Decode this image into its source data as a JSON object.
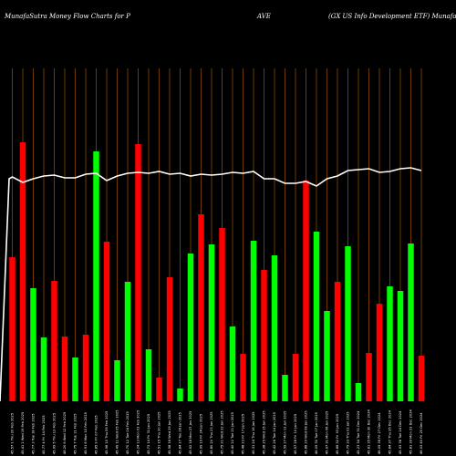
{
  "header": {
    "left": "MunafaSutra  Money Flow  Charts for P",
    "middle": "AVE",
    "right": "(GX   US Info Development ETF) MunafaSutra.com"
  },
  "colors": {
    "background": "#000000",
    "up": "#00ff00",
    "down": "#ff0000",
    "grid": "#8a4a00",
    "line": "#ffffff"
  },
  "chart_data": {
    "type": "bar",
    "title": "MunafaSutra  Money Flow  Charts for PAVE (GX US Info Development ETF) MunafaSutra.com",
    "categories": [
      "45.57 1 Thu 20 Feb 2025",
      "45.41 2 Wed 19 Feb 2025",
      "45.77 3 Tue 18 Feb 2025",
      "45.77 4 Fri 14 Feb 2025",
      "45.99 5 Thu 13 Feb 2025",
      "46.20 6 Wed 12 Feb 2025",
      "45.75 7 Tue 11 Feb 2025",
      "45.91 8 Mon 10 Feb 2025",
      "45.85 9 Fri 07 Feb 2025",
      "45.96 10 Thu 06 Feb 2025",
      "45.49 11 Wed 05 Feb 2025",
      "45.70 12 Tue 04 Feb 2025",
      "45.24 13 Mon 03 Feb 2025",
      "45.73 14 Fri 31 Jan 2025",
      "45.51 15 Thu 30 Jan 2025",
      "45.58 16 Wed 29 Jan 2025",
      "45.84 17 Tue 28 Jan 2025",
      "45.92 18 Mon 27 Jan 2025",
      "45.99 19 Fri 24 Jan 2025",
      "45.80 20 Thu 23 Jan 2025",
      "45.75 21 Wed 22 Jan 2025",
      "45.40 22 Tue 21 Jan 2025",
      "45.48 23 Fri 17 Jan 2025",
      "45.31 24 Thu 16 Jan 2025",
      "45.38 25 Wed 15 Jan 2025",
      "45.42 26 Tue 14 Jan 2025",
      "45.59 27 Mon 13 Jan 2025",
      "45.57 28 Fri 10 Jan 2025",
      "45.88 29 Wed 08 Jan 2025",
      "46.09 30 Tue 07 Jan 2025",
      "45.97 31 Mon 06 Jan 2025",
      "45.66 32 Fri 03 Jan 2025",
      "45.79 33 Thu 02 Jan 2025",
      "45.23 34 Tue 31 Dec 2024",
      "45.81 35 Mon 30 Dec 2024",
      "46.05 36 Fri 27 Dec 2024",
      "45.84 37 Thu 26 Dec 2024",
      "45.93 38 Tue 24 Dec 2024",
      "45.81 39 Mon 23 Dec 2024",
      "46.03 40 Fri 20 Dec 2024"
    ],
    "values": [
      158,
      284,
      124,
      70,
      132,
      71,
      48,
      73,
      274,
      175,
      45,
      131,
      282,
      57,
      26,
      136,
      14,
      162,
      205,
      172,
      190,
      82,
      52,
      176,
      144,
      160,
      29,
      52,
      242,
      186,
      99,
      131,
      170,
      20,
      53,
      107,
      126,
      121,
      173,
      50
    ],
    "direction": [
      "down",
      "down",
      "up",
      "up",
      "down",
      "down",
      "up",
      "down",
      "up",
      "down",
      "up",
      "up",
      "down",
      "up",
      "down",
      "down",
      "up",
      "up",
      "down",
      "up",
      "down",
      "up",
      "down",
      "up",
      "down",
      "up",
      "up",
      "down",
      "down",
      "up",
      "up",
      "down",
      "up",
      "up",
      "down",
      "down",
      "up",
      "up",
      "up",
      "down"
    ],
    "line_values": [
      246,
      240,
      244,
      247,
      248,
      245,
      245,
      249,
      250,
      242,
      247,
      250,
      251,
      250,
      252,
      249,
      250,
      247,
      249,
      248,
      249,
      251,
      250,
      252,
      244,
      244,
      239,
      239,
      241,
      236,
      244,
      247,
      253,
      254,
      255,
      251,
      252,
      255,
      256,
      253
    ],
    "ylim": [
      0,
      440
    ],
    "grid": true
  }
}
